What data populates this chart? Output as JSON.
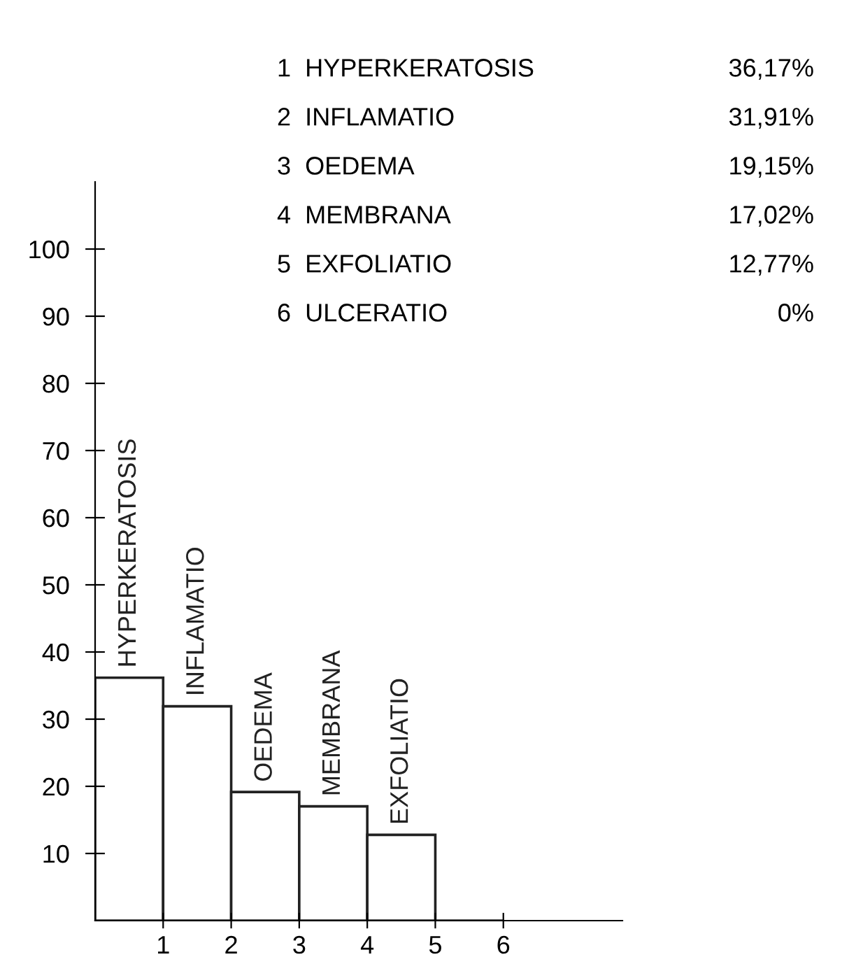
{
  "chart_data": {
    "type": "histogram",
    "bins": [
      0,
      1,
      2,
      3,
      4,
      5,
      6
    ],
    "values": [
      36.17,
      31.91,
      19.15,
      17.02,
      12.77,
      0
    ],
    "color": "#222222",
    "xlim": [
      0,
      7.75
    ],
    "xticks": [
      1,
      2,
      3,
      4,
      5,
      6
    ],
    "ylim": [
      0,
      110
    ],
    "yticks": [
      10,
      20,
      30,
      40,
      50,
      60,
      70,
      80,
      90,
      100
    ],
    "annotations": [
      {
        "text": "HYPERKERATOSIS",
        "x": 0.5,
        "y": 36.17
      },
      {
        "text": "INFLAMATIO",
        "x": 1.5,
        "y": 31.91
      },
      {
        "text": "OEDEMA",
        "x": 2.5,
        "y": 19.15
      },
      {
        "text": "MEMBRANA",
        "x": 3.5,
        "y": 17.02
      },
      {
        "text": "EXFOLIATIO",
        "x": 4.5,
        "y": 12.77
      },
      "1  HYPERKERATOSIS",
      "36,17%",
      "2  INFLAMATIO",
      "31,91%",
      "3  OEDEMA",
      "19,15%",
      "4  MEMBRANA",
      "17,02%",
      "5  EXFOLIATIO",
      "12,77%",
      "6  ULCERATIO",
      "0%"
    ],
    "grid": false
  }
}
